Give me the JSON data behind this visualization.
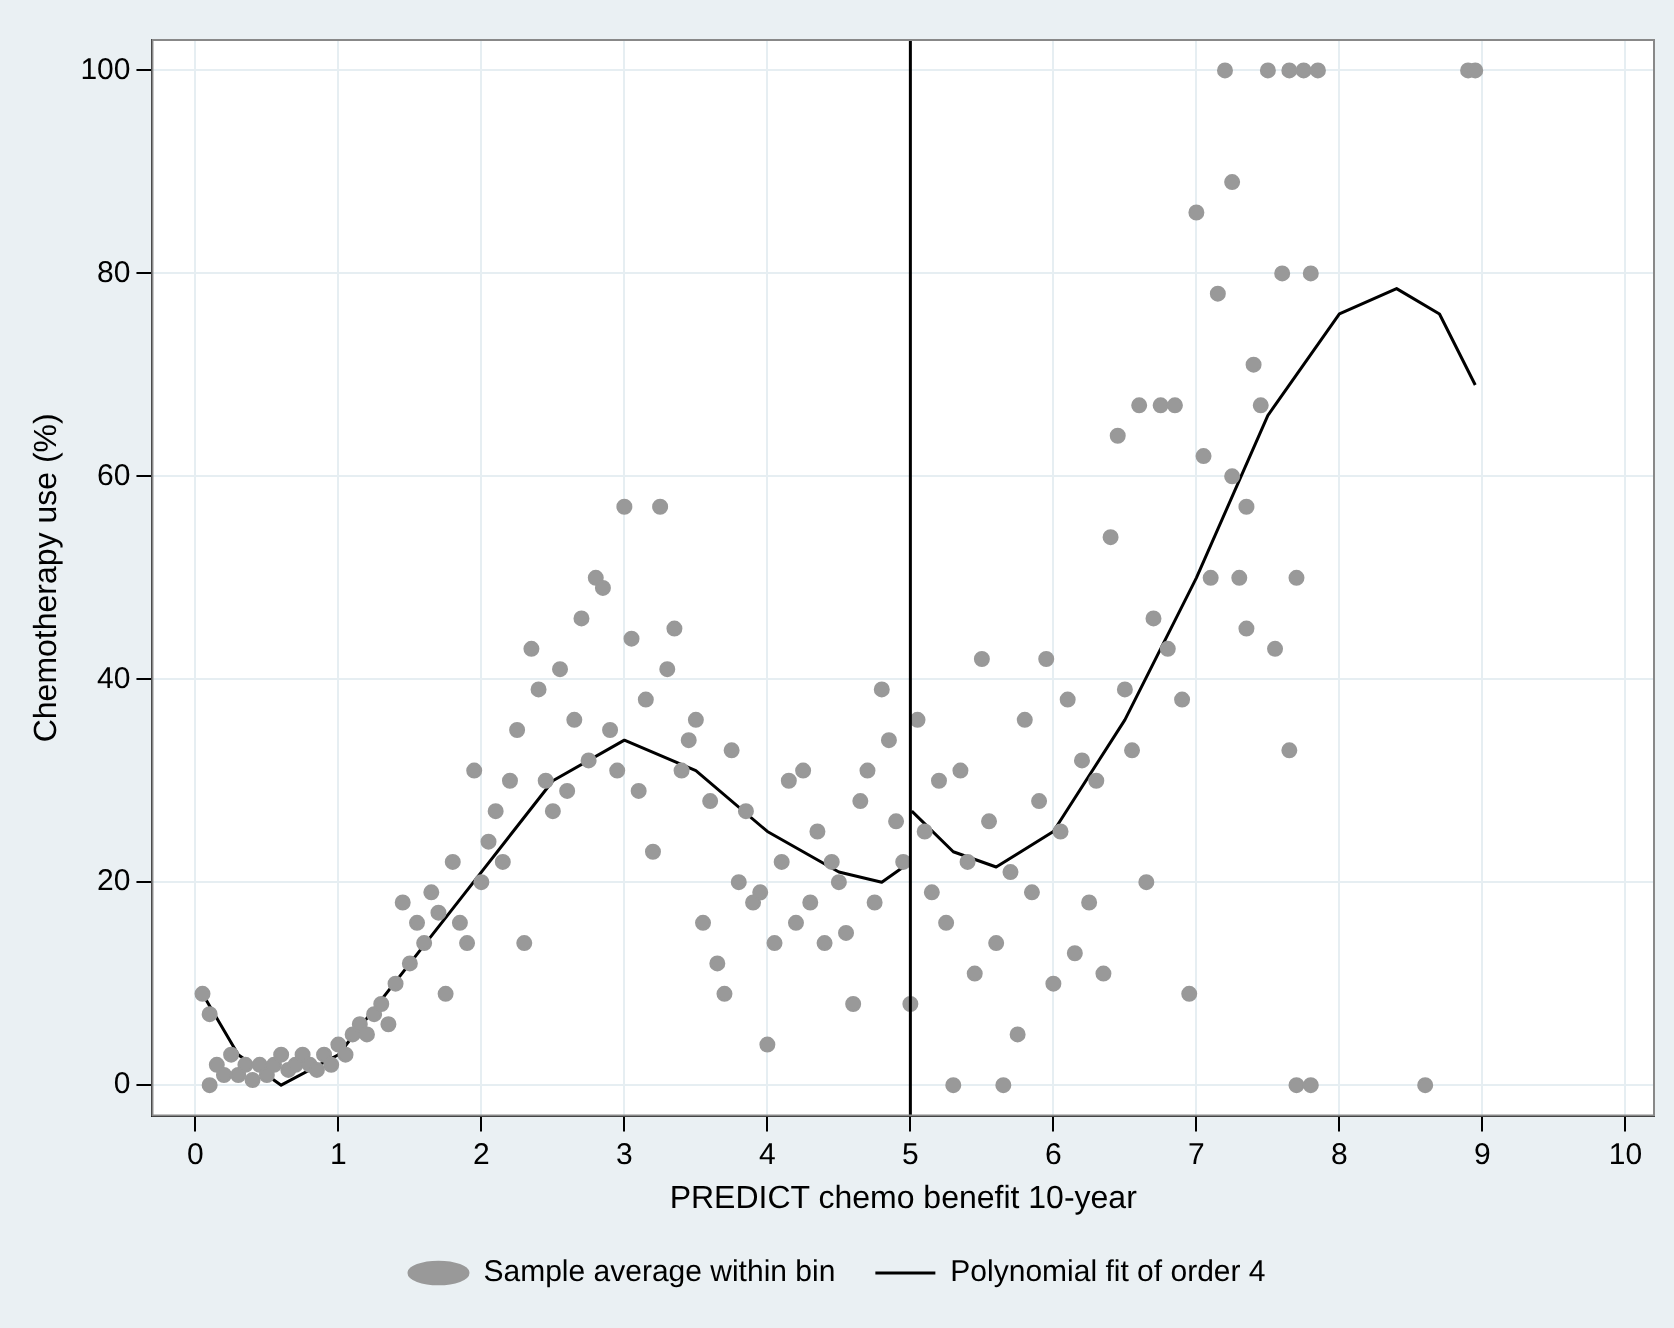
{
  "chart_data": {
    "type": "scatter",
    "xlabel": "PREDICT chemo benefit 10-year",
    "ylabel": "Chemotherapy use (%)",
    "xlim": [
      -0.3,
      10.2
    ],
    "xticks": [
      0,
      1,
      2,
      3,
      4,
      5,
      6,
      7,
      8,
      9,
      10
    ],
    "ylim": [
      -3,
      103
    ],
    "yticks": [
      0,
      20,
      40,
      60,
      80,
      100
    ],
    "grid": true,
    "legend": "bottom",
    "marker": "circle",
    "ref_lines": [
      {
        "axis": "x",
        "value": 5,
        "color": "#000000"
      }
    ],
    "series": [
      {
        "name": "Sample average within bin",
        "type": "scatter",
        "color": "#999999",
        "x": [
          0.05,
          0.1,
          0.1,
          0.15,
          0.2,
          0.25,
          0.3,
          0.35,
          0.4,
          0.45,
          0.5,
          0.55,
          0.6,
          0.65,
          0.7,
          0.75,
          0.8,
          0.85,
          0.9,
          0.95,
          1.0,
          1.05,
          1.1,
          1.15,
          1.2,
          1.25,
          1.3,
          1.35,
          1.4,
          1.45,
          1.5,
          1.55,
          1.6,
          1.65,
          1.7,
          1.75,
          1.8,
          1.85,
          1.9,
          1.95,
          2.0,
          2.05,
          2.1,
          2.15,
          2.2,
          2.25,
          2.3,
          2.35,
          2.4,
          2.45,
          2.5,
          2.55,
          2.6,
          2.65,
          2.7,
          2.75,
          2.8,
          2.85,
          2.9,
          2.95,
          3.0,
          3.05,
          3.1,
          3.15,
          3.2,
          3.25,
          3.3,
          3.35,
          3.4,
          3.45,
          3.5,
          3.55,
          3.6,
          3.65,
          3.7,
          3.75,
          3.8,
          3.85,
          3.9,
          3.95,
          4.0,
          4.05,
          4.1,
          4.15,
          4.2,
          4.25,
          4.3,
          4.35,
          4.4,
          4.45,
          4.5,
          4.55,
          4.6,
          4.65,
          4.7,
          4.75,
          4.8,
          4.85,
          4.9,
          4.95,
          5.0,
          5.05,
          5.1,
          5.15,
          5.2,
          5.25,
          5.3,
          5.35,
          5.4,
          5.45,
          5.5,
          5.55,
          5.6,
          5.65,
          5.7,
          5.75,
          5.8,
          5.85,
          5.9,
          5.95,
          6.0,
          6.05,
          6.1,
          6.15,
          6.2,
          6.25,
          6.3,
          6.35,
          6.4,
          6.45,
          6.5,
          6.55,
          6.6,
          6.65,
          6.7,
          6.75,
          6.8,
          6.85,
          6.9,
          6.95,
          7.0,
          7.05,
          7.1,
          7.15,
          7.2,
          7.25,
          7.3,
          7.35,
          7.4,
          7.45,
          7.5,
          7.55,
          7.6,
          7.65,
          7.7,
          7.75,
          7.8,
          7.85,
          7.8,
          8.6,
          8.9,
          8.95,
          7.65,
          7.7,
          7.35,
          7.25
        ],
        "values": [
          9,
          7,
          0,
          2,
          1,
          3,
          1,
          2,
          0.5,
          2,
          1,
          2,
          3,
          1.5,
          2,
          3,
          2,
          1.5,
          3,
          2,
          4,
          3,
          5,
          6,
          5,
          7,
          8,
          6,
          10,
          18,
          12,
          16,
          14,
          19,
          17,
          9,
          22,
          16,
          14,
          31,
          20,
          24,
          27,
          22,
          30,
          35,
          14,
          43,
          39,
          30,
          27,
          41,
          29,
          36,
          46,
          32,
          50,
          49,
          35,
          31,
          57,
          44,
          29,
          38,
          23,
          57,
          41,
          45,
          31,
          34,
          36,
          16,
          28,
          12,
          9,
          33,
          20,
          27,
          18,
          19,
          4,
          14,
          22,
          30,
          16,
          31,
          18,
          25,
          14,
          22,
          20,
          15,
          8,
          28,
          31,
          18,
          39,
          34,
          26,
          22,
          8,
          36,
          25,
          19,
          30,
          16,
          0,
          31,
          22,
          11,
          42,
          26,
          14,
          0,
          21,
          5,
          36,
          19,
          28,
          42,
          10,
          25,
          38,
          13,
          32,
          18,
          30,
          11,
          54,
          64,
          39,
          33,
          67,
          20,
          46,
          67,
          43,
          67,
          38,
          9,
          86,
          62,
          50,
          78,
          100,
          89,
          50,
          45,
          71,
          67,
          100,
          43,
          80,
          33,
          0,
          100,
          80,
          100,
          0,
          0,
          100,
          100,
          100,
          50,
          57,
          60
        ]
      },
      {
        "name": "Polynomial fit of order 4",
        "type": "line",
        "color": "#000000",
        "marker": "none",
        "x": [
          0.05,
          0.3,
          0.6,
          1,
          1.5,
          2,
          2.5,
          3,
          3.5,
          4,
          4.5,
          4.8,
          5,
          5.001,
          5.01,
          5.3,
          5.6,
          6,
          6.5,
          7,
          7.5,
          8,
          8.4,
          8.7,
          8.95
        ],
        "values": [
          9,
          3,
          0,
          3,
          12,
          21,
          30,
          34,
          31,
          25,
          21,
          20,
          22,
          null,
          27,
          23,
          21.5,
          25,
          36,
          50,
          66,
          76,
          78.5,
          76,
          69
        ]
      }
    ]
  }
}
